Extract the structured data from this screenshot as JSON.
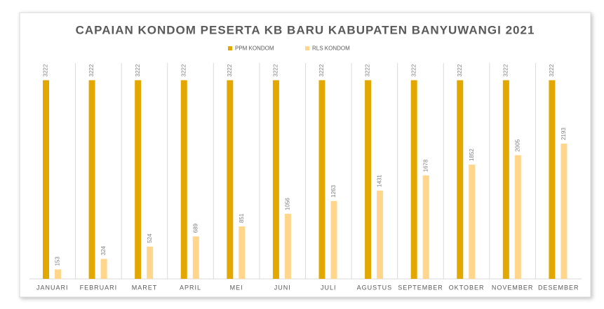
{
  "chart_data": {
    "type": "bar",
    "title": "CAPAIAN KONDOM PESERTA KB BARU KABUPATEN BANYUWANGI 2021",
    "categories": [
      "JANUARI",
      "FEBRUARI",
      "MARET",
      "APRIL",
      "MEI",
      "JUNI",
      "JULI",
      "AGUSTUS",
      "SEPTEMBER",
      "OKTOBER",
      "NOVEMBER",
      "DESEMBER"
    ],
    "series": [
      {
        "name": "PPM KONDOM",
        "color": "#e2a800",
        "values": [
          3222,
          3222,
          3222,
          3222,
          3222,
          3222,
          3222,
          3222,
          3222,
          3222,
          3222,
          3222
        ]
      },
      {
        "name": "RLS KONDOM",
        "color": "#ffd68c",
        "values": [
          153,
          324,
          524,
          689,
          851,
          1056,
          1263,
          1431,
          1678,
          1852,
          2005,
          2193
        ]
      }
    ],
    "ylim": [
      0,
      3500
    ],
    "legend": "top"
  }
}
